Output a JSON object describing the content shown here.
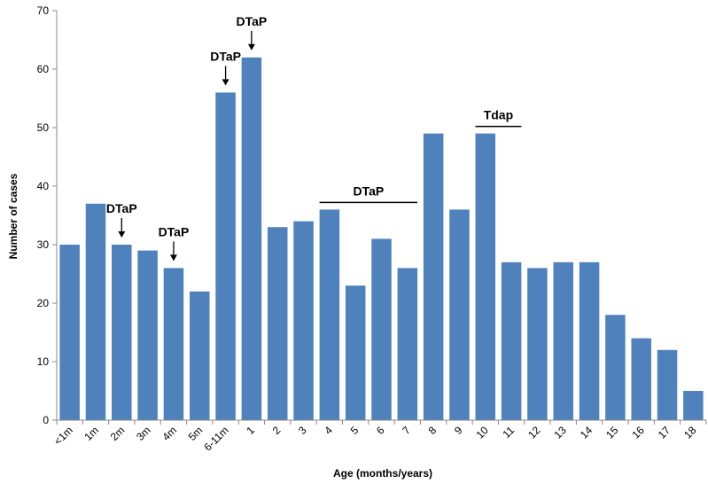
{
  "chart_data": {
    "type": "bar",
    "categories": [
      "<1m",
      "1m",
      "2m",
      "3m",
      "4m",
      "5m",
      "6-11m",
      "1",
      "2",
      "3",
      "4",
      "5",
      "6",
      "7",
      "8",
      "9",
      "10",
      "11",
      "12",
      "13",
      "14",
      "15",
      "16",
      "17",
      "18"
    ],
    "values": [
      30,
      37,
      30,
      29,
      26,
      22,
      56,
      62,
      33,
      34,
      36,
      23,
      31,
      26,
      49,
      36,
      49,
      27,
      26,
      27,
      27,
      18,
      14,
      12,
      5
    ],
    "title": "",
    "xlabel": "Age (months/years)",
    "ylabel": "Number of cases",
    "ylim": [
      0,
      70
    ],
    "yticks": [
      0,
      10,
      20,
      30,
      40,
      50,
      60,
      70
    ],
    "grid": false,
    "legend": "none",
    "bar_color": "#4f81bd",
    "annotations": [
      {
        "label": "DTaP",
        "kind": "arrow",
        "category": "2m"
      },
      {
        "label": "DTaP",
        "kind": "arrow",
        "category": "4m"
      },
      {
        "label": "DTaP",
        "kind": "arrow",
        "category": "6-11m"
      },
      {
        "label": "DTaP",
        "kind": "arrow",
        "category": "1"
      },
      {
        "label": "DTaP",
        "kind": "range",
        "from": "4",
        "to": "7"
      },
      {
        "label": "Tdap",
        "kind": "range",
        "from": "10",
        "to": "11"
      }
    ]
  }
}
